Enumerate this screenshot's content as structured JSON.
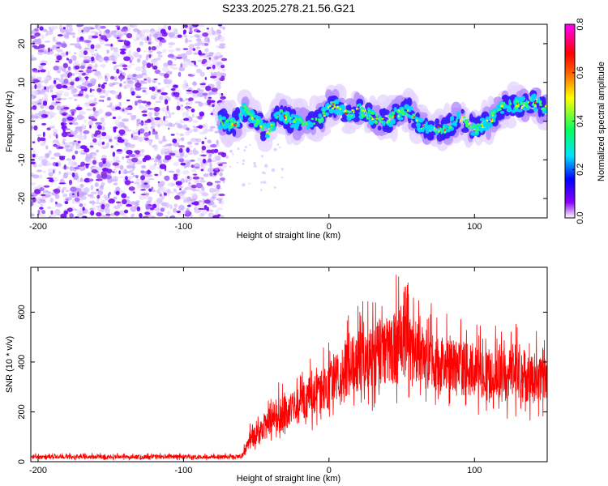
{
  "title": "S233.2025.278.21.56.G21",
  "chart_data": [
    {
      "type": "heatmap",
      "name": "spectrogram",
      "xlabel": "Height of straight line (km)",
      "ylabel": "Frequency (Hz)",
      "xlim": [
        -205,
        150
      ],
      "ylim": [
        -25,
        25
      ],
      "xticks": [
        -200,
        -100,
        0,
        100
      ],
      "yticks": [
        -20,
        -10,
        0,
        10,
        20
      ],
      "colorbar": {
        "label": "Normalized spectral amplitude",
        "range": [
          0.0,
          0.8
        ],
        "ticks": [
          0.0,
          0.2,
          0.4,
          0.6,
          0.8
        ],
        "tick_labels": [
          "0.0",
          "0.2",
          "0.4",
          "0.6",
          "0.8"
        ],
        "colors": [
          "#ffffff",
          "#8a00ff",
          "#0000ff",
          "#00e0ff",
          "#00ff60",
          "#ffff00",
          "#ff6000",
          "#ff0000",
          "#ff00ff"
        ]
      },
      "noise_region_x": [
        -205,
        -72
      ],
      "signal_track": {
        "x": [
          -75,
          -65,
          -58,
          -50,
          -42,
          -35,
          -25,
          -15,
          -5,
          0,
          5,
          12,
          20,
          30,
          40,
          48,
          55,
          62,
          70,
          80,
          90,
          100,
          110,
          120,
          130,
          140,
          150
        ],
        "freq": [
          0,
          -1,
          3,
          0,
          -3,
          2,
          0,
          -1,
          1,
          4,
          4,
          2,
          3,
          1,
          0,
          2,
          3,
          -1,
          -2,
          -2,
          1,
          -2,
          0,
          4,
          4,
          5,
          3
        ]
      }
    },
    {
      "type": "line",
      "name": "snr",
      "xlabel": "Height of straight line (km)",
      "ylabel": "SNR (10 * v/v)",
      "xlim": [
        -205,
        150
      ],
      "ylim": [
        0,
        780
      ],
      "xticks": [
        -200,
        -100,
        0,
        100
      ],
      "yticks": [
        0,
        200,
        400,
        600
      ],
      "color": "#ff0000",
      "envelope": {
        "x": [
          -205,
          -100,
          -60,
          -55,
          -45,
          -40,
          -30,
          -20,
          -10,
          0,
          10,
          20,
          30,
          40,
          50,
          60,
          70,
          80,
          90,
          100,
          110,
          120,
          130,
          140,
          150
        ],
        "lo": [
          5,
          5,
          5,
          20,
          40,
          60,
          80,
          100,
          130,
          150,
          170,
          190,
          200,
          200,
          200,
          200,
          200,
          200,
          190,
          180,
          180,
          170,
          160,
          160,
          180
        ],
        "hi": [
          35,
          35,
          35,
          150,
          220,
          320,
          320,
          380,
          430,
          480,
          560,
          650,
          700,
          710,
          780,
          680,
          640,
          600,
          580,
          560,
          560,
          540,
          560,
          540,
          520
        ]
      }
    }
  ]
}
